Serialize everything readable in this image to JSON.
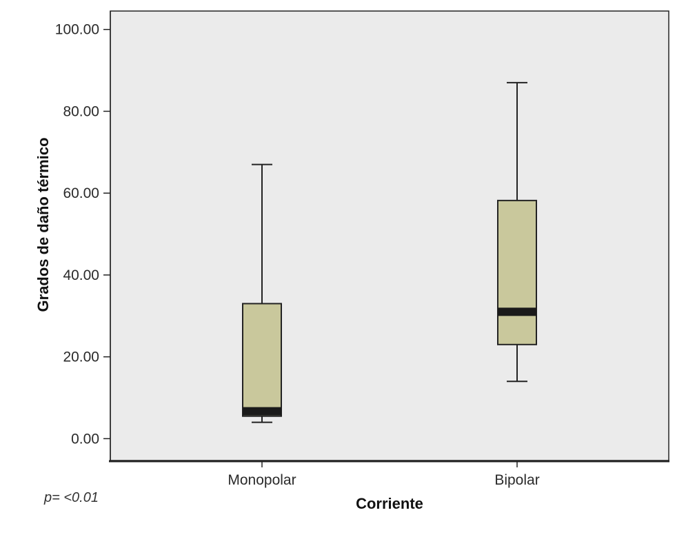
{
  "chart_data": {
    "type": "boxplot",
    "xlabel": "Corriente",
    "ylabel": "Grados de daño térmico",
    "ylim": [
      -5.5,
      104.5
    ],
    "yticks": [
      "0.00",
      "20.00",
      "40.00",
      "60.00",
      "80.00",
      "100.00"
    ],
    "ytick_values": [
      0,
      20,
      40,
      60,
      80,
      100
    ],
    "categories": [
      "Monopolar",
      "Bipolar"
    ],
    "boxes": [
      {
        "category": "Monopolar",
        "min": 4,
        "q1": 5.5,
        "median": 6.7,
        "q3": 33,
        "max": 67
      },
      {
        "category": "Bipolar",
        "min": 14,
        "q1": 23,
        "median": 31,
        "q3": 58.2,
        "max": 87
      }
    ],
    "grid": false,
    "colors": {
      "plot_background": "#ebebeb",
      "box_fill": "#c9c89c",
      "box_stroke": "#222222",
      "median": "#1a1a1a"
    }
  },
  "annotation": "p= <0.01"
}
